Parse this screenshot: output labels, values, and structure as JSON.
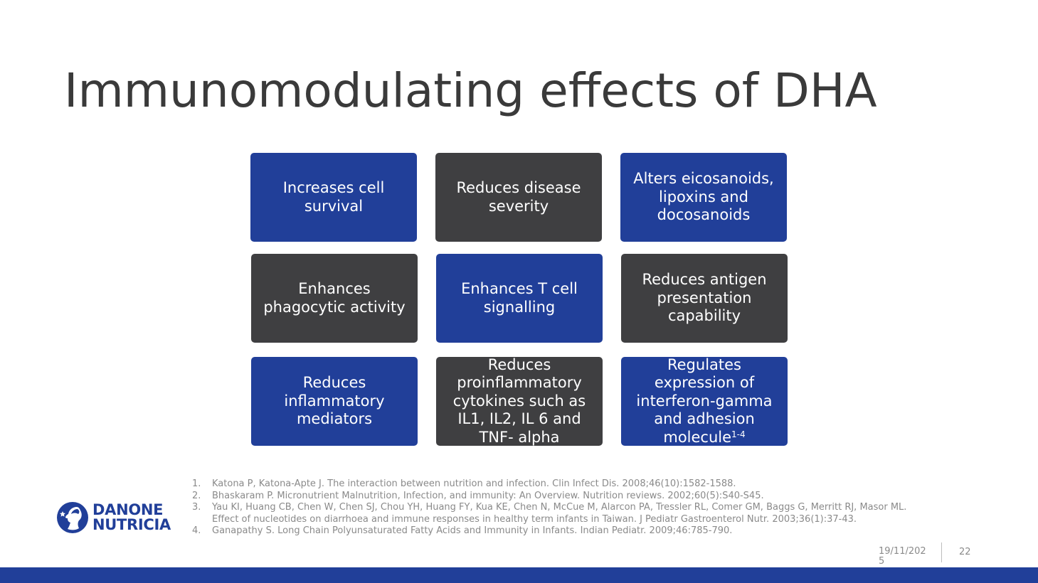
{
  "slide": {
    "title": "Immunomodulating effects of DHA",
    "date": "19/11/2025",
    "page_number": "22"
  },
  "boxes": [
    {
      "text": "Increases cell survival",
      "sup": ""
    },
    {
      "text": "Reduces disease severity",
      "sup": ""
    },
    {
      "text": "Alters eicosanoids, lipoxins and docosanoids",
      "sup": ""
    },
    {
      "text": "Enhances phagocytic activity",
      "sup": ""
    },
    {
      "text": "Enhances T cell signalling",
      "sup": ""
    },
    {
      "text": "Reduces antigen presentation capability",
      "sup": ""
    },
    {
      "text": "Reduces inflammatory mediators",
      "sup": ""
    },
    {
      "text": "Reduces proinflammatory cytokines such as IL1, IL2, IL 6 and TNF- alpha",
      "sup": ""
    },
    {
      "text": "Regulates expression of interferon-gamma and adhesion molecule",
      "sup": "1-4"
    }
  ],
  "references": [
    {
      "num": "1.",
      "text": "Katona P, Katona-Apte J. The interaction between nutrition and infection. Clin Infect Dis. 2008;46(10):1582-1588."
    },
    {
      "num": "2.",
      "text": "Bhaskaram P. Micronutrient Malnutrition, Infection, and immunity: An Overview. Nutrition reviews. 2002;60(5):S40-S45."
    },
    {
      "num": "3.",
      "text": "Yau KI, Huang CB, Chen W, Chen SJ, Chou YH, Huang FY, Kua KE, Chen N, McCue M, Alarcon PA, Tressler RL, Comer GM, Baggs G, Merritt RJ, Masor ML. Effect of nucleotides on diarrhoea and immune responses in healthy term infants in Taiwan. J Pediatr Gastroenterol Nutr. 2003;36(1):37-43."
    },
    {
      "num": "4.",
      "text": "Ganapathy S. Long Chain Polyunsaturated Fatty Acids and Immunity in Infants. Indian Pediatr. 2009;46:785-790."
    }
  ],
  "logo": {
    "line1": "DANONE",
    "line2": "NUTRICIA"
  },
  "colors": {
    "brand_blue": "#213f99",
    "dark_grey": "#3f3f41"
  }
}
